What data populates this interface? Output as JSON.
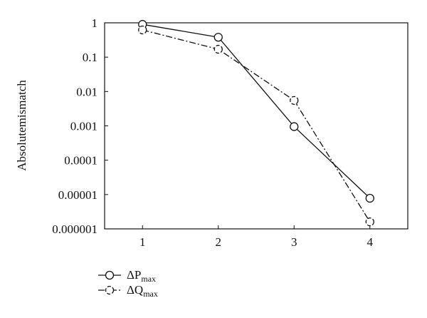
{
  "chart_data": {
    "type": "line",
    "title": "",
    "xlabel": "",
    "ylabel": "Absolutemismatch",
    "yscale": "log",
    "x": [
      1,
      2,
      3,
      4
    ],
    "x_tick_labels": [
      "1",
      "2",
      "3",
      "4"
    ],
    "xlim": [
      0.5,
      4.5
    ],
    "ylim": [
      1e-06,
      1
    ],
    "y_tick_values": [
      1,
      0.1,
      0.01,
      0.001,
      0.0001,
      1e-05,
      1e-06
    ],
    "y_tick_labels": [
      "1",
      "0.1",
      "0.01",
      "0.001",
      "0.0001",
      "0.00001",
      "0.000001"
    ],
    "grid": false,
    "legend_position": "bottom-left, below plot",
    "series": [
      {
        "name_prefix": "ΔP",
        "name_subscript": "max",
        "values": [
          0.9,
          0.38,
          0.00095,
          7.8e-06
        ],
        "line_style": "solid",
        "marker": "circle",
        "color": "#111111"
      },
      {
        "name_prefix": "ΔQ",
        "name_subscript": "max",
        "values": [
          0.62,
          0.17,
          0.0055,
          1.6e-06
        ],
        "line_style": "dash-dot",
        "marker": "dashed-circle",
        "color": "#111111"
      }
    ]
  }
}
